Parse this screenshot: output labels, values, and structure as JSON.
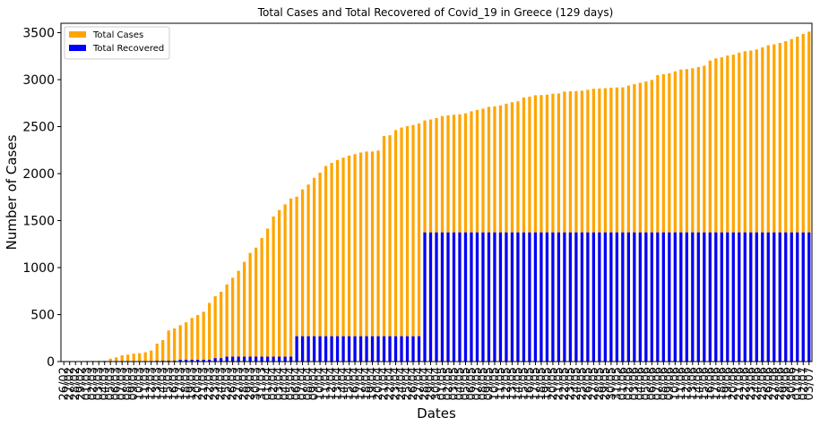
{
  "chart_data": {
    "type": "bar",
    "title": "Total Cases and Total Recovered of Covid_19 in Greece (129 days)",
    "xlabel": "Dates",
    "ylabel": "Number of Cases",
    "ylim": [
      0,
      3600
    ],
    "yticks": [
      0,
      500,
      1000,
      1500,
      2000,
      2500,
      3000,
      3500
    ],
    "grid": false,
    "legend_position": "top-left",
    "stacked": "overlay",
    "categories": [
      "26/02",
      "27/02",
      "28/02",
      "29/02",
      "01/03",
      "02/03",
      "03/03",
      "04/03",
      "05/03",
      "06/03",
      "07/03",
      "08/03",
      "09/03",
      "10/03",
      "11/03",
      "12/03",
      "13/03",
      "14/03",
      "15/03",
      "16/03",
      "17/03",
      "18/03",
      "19/03",
      "20/03",
      "21/03",
      "22/03",
      "23/03",
      "24/03",
      "25/03",
      "26/03",
      "27/03",
      "28/03",
      "29/03",
      "30/03",
      "31/03",
      "01/04",
      "02/04",
      "03/04",
      "04/04",
      "05/04",
      "06/04",
      "07/04",
      "08/04",
      "09/04",
      "10/04",
      "11/04",
      "12/04",
      "13/04",
      "14/04",
      "15/04",
      "16/04",
      "17/04",
      "18/04",
      "19/04",
      "20/04",
      "21/04",
      "22/04",
      "23/04",
      "24/04",
      "25/04",
      "26/04",
      "27/04",
      "28/04",
      "29/04",
      "30/04",
      "01/05",
      "02/05",
      "03/05",
      "04/05",
      "05/05",
      "06/05",
      "07/05",
      "08/05",
      "09/05",
      "10/05",
      "11/05",
      "12/05",
      "13/05",
      "14/05",
      "15/05",
      "16/05",
      "17/05",
      "18/05",
      "19/05",
      "20/05",
      "21/05",
      "22/05",
      "23/05",
      "24/05",
      "25/05",
      "26/05",
      "27/05",
      "28/05",
      "29/05",
      "30/05",
      "31/05",
      "01/06",
      "02/06",
      "03/06",
      "04/06",
      "05/06",
      "06/06",
      "07/06",
      "08/06",
      "09/06",
      "10/06",
      "11/06",
      "12/06",
      "13/06",
      "14/06",
      "15/06",
      "16/06",
      "17/06",
      "18/06",
      "19/06",
      "20/06",
      "21/06",
      "22/06",
      "23/06",
      "24/06",
      "25/06",
      "26/06",
      "27/06",
      "28/06",
      "29/06",
      "30/06",
      "01/07",
      "02/07",
      "03/07"
    ],
    "series": [
      {
        "name": "Total Cases",
        "color": "#FFA500",
        "values": [
          1,
          3,
          4,
          4,
          7,
          7,
          7,
          9,
          31,
          45,
          66,
          73,
          84,
          89,
          99,
          117,
          190,
          228,
          331,
          352,
          387,
          418,
          464,
          495,
          530,
          624,
          695,
          743,
          821,
          892,
          966,
          1061,
          1156,
          1212,
          1314,
          1415,
          1544,
          1613,
          1673,
          1735,
          1755,
          1832,
          1884,
          1955,
          2011,
          2081,
          2114,
          2145,
          2170,
          2192,
          2207,
          2224,
          2235,
          2235,
          2245,
          2401,
          2408,
          2463,
          2490,
          2506,
          2517,
          2534,
          2566,
          2576,
          2591,
          2612,
          2620,
          2626,
          2632,
          2642,
          2663,
          2678,
          2691,
          2710,
          2716,
          2726,
          2744,
          2760,
          2770,
          2810,
          2819,
          2834,
          2836,
          2840,
          2850,
          2853,
          2873,
          2876,
          2878,
          2882,
          2892,
          2903,
          2906,
          2909,
          2915,
          2917,
          2918,
          2937,
          2952,
          2967,
          2980,
          2997,
          3049,
          3058,
          3068,
          3088,
          3108,
          3112,
          3121,
          3134,
          3148,
          3203,
          3227,
          3237,
          3256,
          3266,
          3287,
          3302,
          3310,
          3321,
          3343,
          3366,
          3376,
          3390,
          3409,
          3432,
          3458,
          3486,
          3511
        ]
      },
      {
        "name": "Total Recovered",
        "color": "#0000FF",
        "values": [
          0,
          0,
          0,
          0,
          0,
          0,
          0,
          0,
          0,
          0,
          0,
          0,
          0,
          0,
          0,
          0,
          8,
          8,
          8,
          8,
          19,
          19,
          19,
          19,
          19,
          19,
          36,
          36,
          52,
          52,
          52,
          52,
          52,
          52,
          52,
          52,
          52,
          52,
          52,
          52,
          269,
          269,
          269,
          269,
          269,
          269,
          269,
          269,
          269,
          269,
          269,
          269,
          269,
          269,
          269,
          269,
          269,
          269,
          269,
          269,
          269,
          269,
          1374,
          1374,
          1374,
          1374,
          1374,
          1374,
          1374,
          1374,
          1374,
          1374,
          1374,
          1374,
          1374,
          1374,
          1374,
          1374,
          1374,
          1374,
          1374,
          1374,
          1374,
          1374,
          1374,
          1374,
          1374,
          1374,
          1374,
          1374,
          1374,
          1374,
          1374,
          1374,
          1374,
          1374,
          1374,
          1374,
          1374,
          1374,
          1374,
          1374,
          1374,
          1374,
          1374,
          1374,
          1374,
          1374,
          1374,
          1374,
          1374,
          1374,
          1374,
          1374,
          1374,
          1374,
          1374,
          1374,
          1374,
          1374,
          1374,
          1374,
          1374,
          1374,
          1374,
          1374,
          1374,
          1374,
          1374
        ]
      }
    ]
  }
}
